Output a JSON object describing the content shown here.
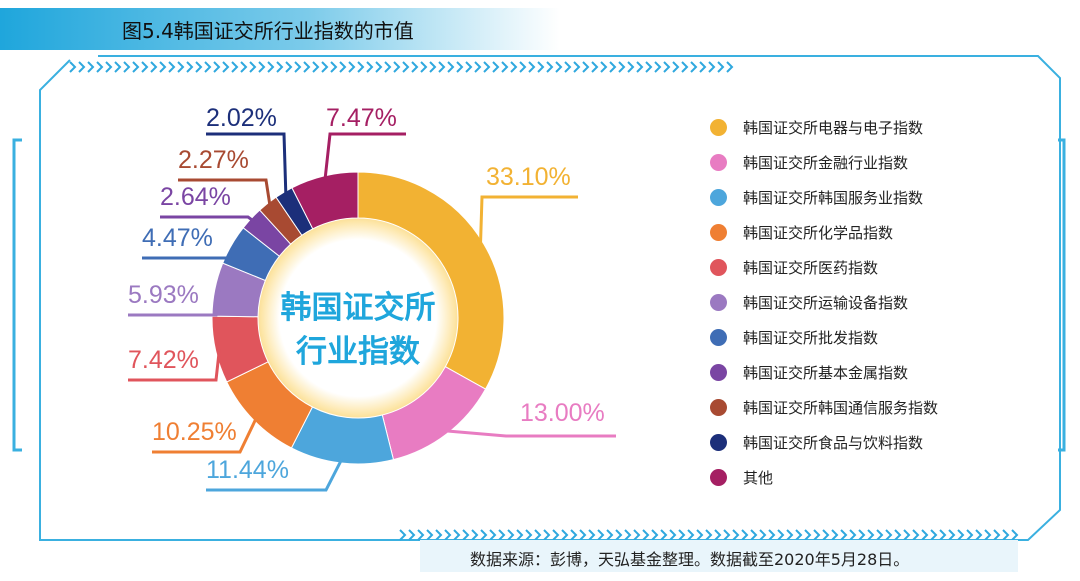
{
  "header": {
    "title": "图5.4韩国证交所行业指数的市值"
  },
  "footer": {
    "source": "数据来源：彭博，天弘基金整理。数据截至2020年5月28日。"
  },
  "center_label": {
    "line1": "韩国证交所",
    "line2": "行业指数"
  },
  "chart_data": {
    "type": "pie",
    "variant": "donut",
    "title": "图5.4韩国证交所行业指数的市值",
    "categories": [
      "韩国证交所电器与电子指数",
      "韩国证交所金融行业指数",
      "韩国证交所韩国服务业指数",
      "韩国证交所化学品指数",
      "韩国证交所医药指数",
      "韩国证交所运输设备指数",
      "韩国证交所批发指数",
      "韩国证交所基本金属指数",
      "韩国证交所韩国通信服务指数",
      "韩国证交所食品与饮料指数",
      "其他"
    ],
    "values": [
      33.1,
      13.0,
      11.44,
      10.25,
      7.42,
      5.93,
      4.47,
      2.64,
      2.27,
      2.02,
      7.47
    ],
    "labels": [
      "33.10%",
      "13.00%",
      "11.44%",
      "10.25%",
      "7.42%",
      "5.93%",
      "4.47%",
      "2.64%",
      "2.27%",
      "2.02%",
      "7.47%"
    ],
    "colors": [
      "#f2b233",
      "#e87cc2",
      "#4da6dc",
      "#ef7f33",
      "#e0555c",
      "#9b79c1",
      "#3f6db5",
      "#7a45a3",
      "#a84a32",
      "#1c2f7a",
      "#a51f63"
    ],
    "legend_position": "right",
    "unit": "%"
  }
}
